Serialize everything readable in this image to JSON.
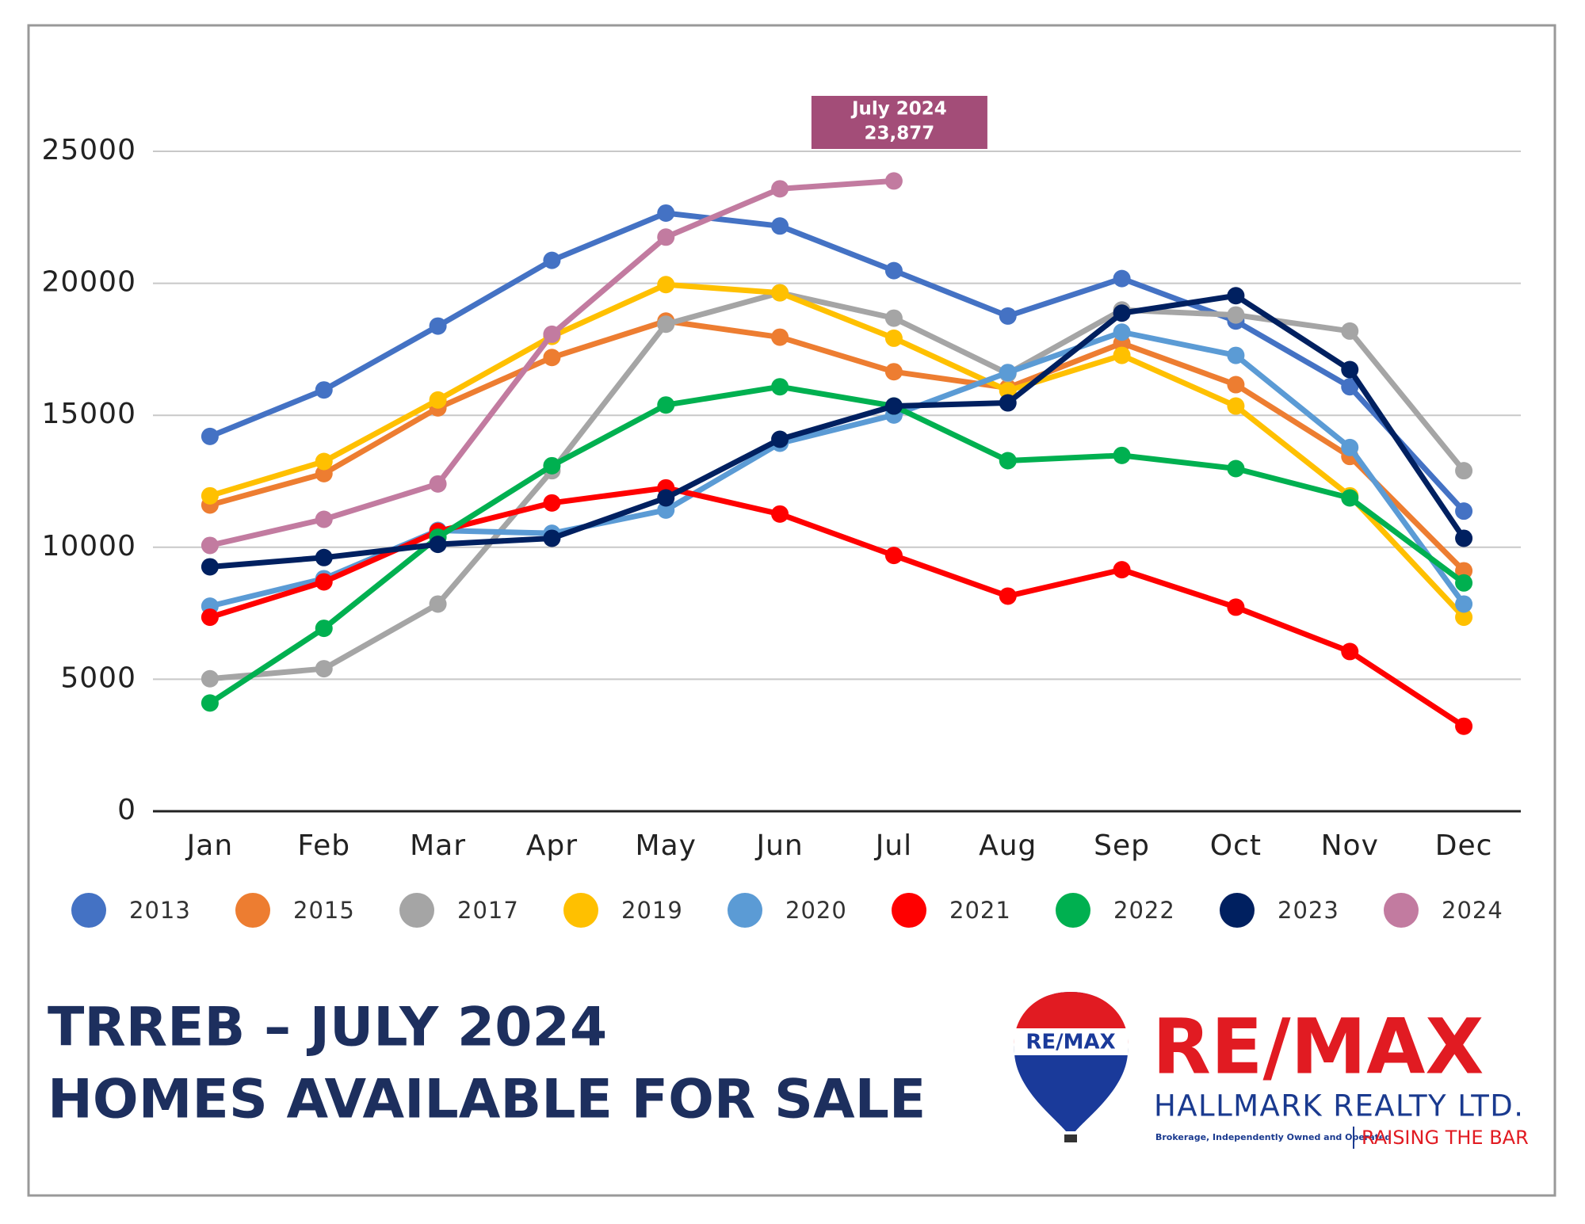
{
  "chart_data": {
    "type": "line",
    "categories": [
      "Jan",
      "Feb",
      "Mar",
      "Apr",
      "May",
      "Jun",
      "Jul",
      "Aug",
      "Sep",
      "Oct",
      "Nov",
      "Dec"
    ],
    "series": [
      {
        "name": "2013",
        "color": "#4472c4",
        "values": [
          14200,
          15960,
          18380,
          20870,
          22660,
          22170,
          20480,
          18760,
          20180,
          18570,
          16080,
          11370
        ]
      },
      {
        "name": "2015",
        "color": "#ed7d31",
        "values": [
          11600,
          12790,
          15280,
          17190,
          18570,
          17960,
          16650,
          16040,
          17730,
          16160,
          13440,
          9110
        ]
      },
      {
        "name": "2017",
        "color": "#a5a5a5",
        "values": [
          5020,
          5400,
          7850,
          12900,
          18450,
          19640,
          18680,
          16580,
          18990,
          18800,
          18190,
          12900
        ]
      },
      {
        "name": "2019",
        "color": "#ffc000",
        "values": [
          11950,
          13250,
          15580,
          17990,
          19950,
          19640,
          17920,
          15930,
          17270,
          15350,
          11950,
          7350
        ]
      },
      {
        "name": "2020",
        "color": "#5b9bd5",
        "values": [
          7770,
          8810,
          10640,
          10530,
          11410,
          13940,
          15010,
          16620,
          18150,
          17270,
          13780,
          7850
        ]
      },
      {
        "name": "2021",
        "color": "#ff0000",
        "values": [
          7350,
          8690,
          10600,
          11680,
          12250,
          11260,
          9690,
          8150,
          9150,
          7730,
          6050,
          3220
        ]
      },
      {
        "name": "2022",
        "color": "#00b050",
        "values": [
          4100,
          6930,
          10380,
          13090,
          15390,
          16080,
          15350,
          13280,
          13480,
          12980,
          11870,
          8650
        ]
      },
      {
        "name": "2023",
        "color": "#002060",
        "values": [
          9260,
          9610,
          10110,
          10340,
          11870,
          14090,
          15350,
          15470,
          18870,
          19530,
          16730,
          10340
        ]
      },
      {
        "name": "2024",
        "color": "#c27ba0",
        "values": [
          10070,
          11060,
          12400,
          18070,
          21750,
          23580,
          23877,
          null,
          null,
          null,
          null,
          null
        ]
      }
    ],
    "ylim": [
      0,
      25000
    ],
    "yticks": [
      0,
      5000,
      10000,
      15000,
      20000,
      25000
    ],
    "grid": true,
    "legend": "bottom",
    "annotation": {
      "lines": [
        "July 2024",
        "23,877"
      ],
      "color": "#a34d78"
    }
  },
  "footer": {
    "title_lines": [
      "TRREB – JULY 2024",
      "HOMES AVAILABLE FOR SALE"
    ],
    "logo": {
      "balloon": "RE/MAX",
      "brand": "RE/MAX",
      "company": "HALLMARK REALTY LTD.",
      "note": "Brokerage, Independently Owned and Operated",
      "tagline": "RAISING THE BAR"
    }
  }
}
